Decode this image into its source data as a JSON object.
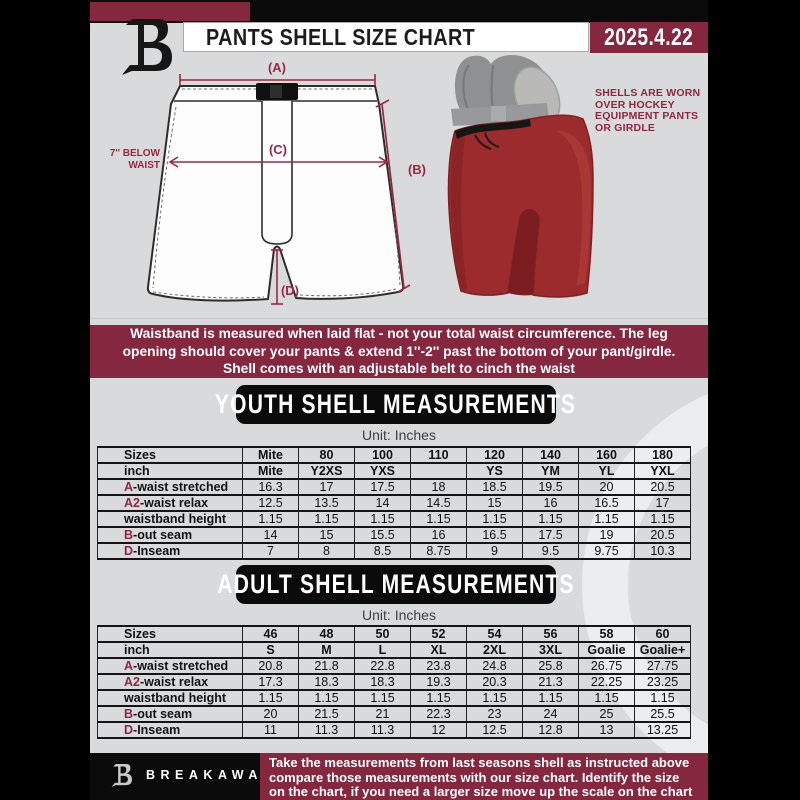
{
  "header": {
    "title": "PANTS SHELL SIZE CHART",
    "date": "2025.4.22"
  },
  "diagram": {
    "marker_a": "(A)",
    "marker_b": "(B)",
    "marker_c": "(C)",
    "marker_d": "(D)",
    "note_line1": "7'' BELOW",
    "note_line2": "WAIST",
    "photo_note": [
      "SHELLS ARE WORN",
      "OVER HOCKEY",
      "EQUIPMENT PANTS",
      "OR GIRDLE"
    ]
  },
  "notice": {
    "lines": [
      "Waistband is measured when laid flat - not your total waist circumference. The leg",
      "opening should cover your pants & extend 1''-2'' past the bottom of your pant/girdle.",
      "Shell comes with an adjustable belt to cinch the waist"
    ]
  },
  "youth": {
    "title": "YOUTH SHELL MEASUREMENTS",
    "unit": "Unit: Inches",
    "table": {
      "rows": [
        {
          "prefix": "",
          "label": "Sizes",
          "header": true,
          "values": [
            "Mite",
            "80",
            "100",
            "110",
            "120",
            "140",
            "160",
            "180"
          ]
        },
        {
          "prefix": "",
          "label": "inch",
          "header": true,
          "values": [
            "Mite",
            "Y2XS",
            "YXS",
            "",
            "YS",
            "YM",
            "YL",
            "YXL"
          ]
        },
        {
          "prefix": "A",
          "label": "-waist stretched",
          "header": false,
          "values": [
            "16.3",
            "17",
            "17.5",
            "18",
            "18.5",
            "19.5",
            "20",
            "20.5"
          ]
        },
        {
          "prefix": "A2",
          "label": "-waist relax",
          "header": false,
          "values": [
            "12.5",
            "13.5",
            "14",
            "14.5",
            "15",
            "16",
            "16.5",
            "17"
          ]
        },
        {
          "prefix": "",
          "label": "waistband height",
          "header": false,
          "values": [
            "1.15",
            "1.15",
            "1.15",
            "1.15",
            "1.15",
            "1.15",
            "1.15",
            "1.15"
          ]
        },
        {
          "prefix": "B",
          "label": "-out seam",
          "header": false,
          "values": [
            "14",
            "15",
            "15.5",
            "16",
            "16.5",
            "17.5",
            "19",
            "20.5"
          ]
        },
        {
          "prefix": "D",
          "label": "-Inseam",
          "header": false,
          "values": [
            "7",
            "8",
            "8.5",
            "8.75",
            "9",
            "9.5",
            "9.75",
            "10.3"
          ]
        }
      ]
    }
  },
  "adult": {
    "title": "ADULT SHELL MEASUREMENTS",
    "unit": "Unit: Inches",
    "table": {
      "rows": [
        {
          "prefix": "",
          "label": "Sizes",
          "header": true,
          "values": [
            "46",
            "48",
            "50",
            "52",
            "54",
            "56",
            "58",
            "60"
          ]
        },
        {
          "prefix": "",
          "label": "inch",
          "header": true,
          "values": [
            "S",
            "M",
            "L",
            "XL",
            "2XL",
            "3XL",
            "Goalie",
            "Goalie+"
          ]
        },
        {
          "prefix": "A",
          "label": "-waist stretched",
          "header": false,
          "values": [
            "20.8",
            "21.8",
            "22.8",
            "23.8",
            "24.8",
            "25.8",
            "26.75",
            "27.75"
          ]
        },
        {
          "prefix": "A2",
          "label": "-waist relax",
          "header": false,
          "values": [
            "17.3",
            "18.3",
            "18.3",
            "19.3",
            "20.3",
            "21.3",
            "22.25",
            "23.25"
          ]
        },
        {
          "prefix": "",
          "label": "waistband height",
          "header": false,
          "values": [
            "1.15",
            "1.15",
            "1.15",
            "1.15",
            "1.15",
            "1.15",
            "1.15",
            "1.15"
          ]
        },
        {
          "prefix": "B",
          "label": "-out seam",
          "header": false,
          "values": [
            "20",
            "21.5",
            "21",
            "22.3",
            "23",
            "24",
            "25",
            "25.5"
          ]
        },
        {
          "prefix": "D",
          "label": "-Inseam",
          "header": false,
          "values": [
            "11",
            "11.3",
            "11.3",
            "12",
            "12.5",
            "12.8",
            "13",
            "13.25"
          ]
        }
      ]
    }
  },
  "footer": {
    "brand": "BREAKAWAY",
    "lines": [
      "Take the measurements from last seasons shell as instructed above",
      "compare those measurements  with our size chart. Identify the size",
      "on the chart, if you need a larger size move up the scale on the chart"
    ]
  },
  "colors": {
    "maroon": "#85273F",
    "accent_marker": "#9B2742",
    "page_bg": "#D9DADC",
    "banner_black": "#0B0B0B",
    "shell_red": "#9C2B2E"
  }
}
